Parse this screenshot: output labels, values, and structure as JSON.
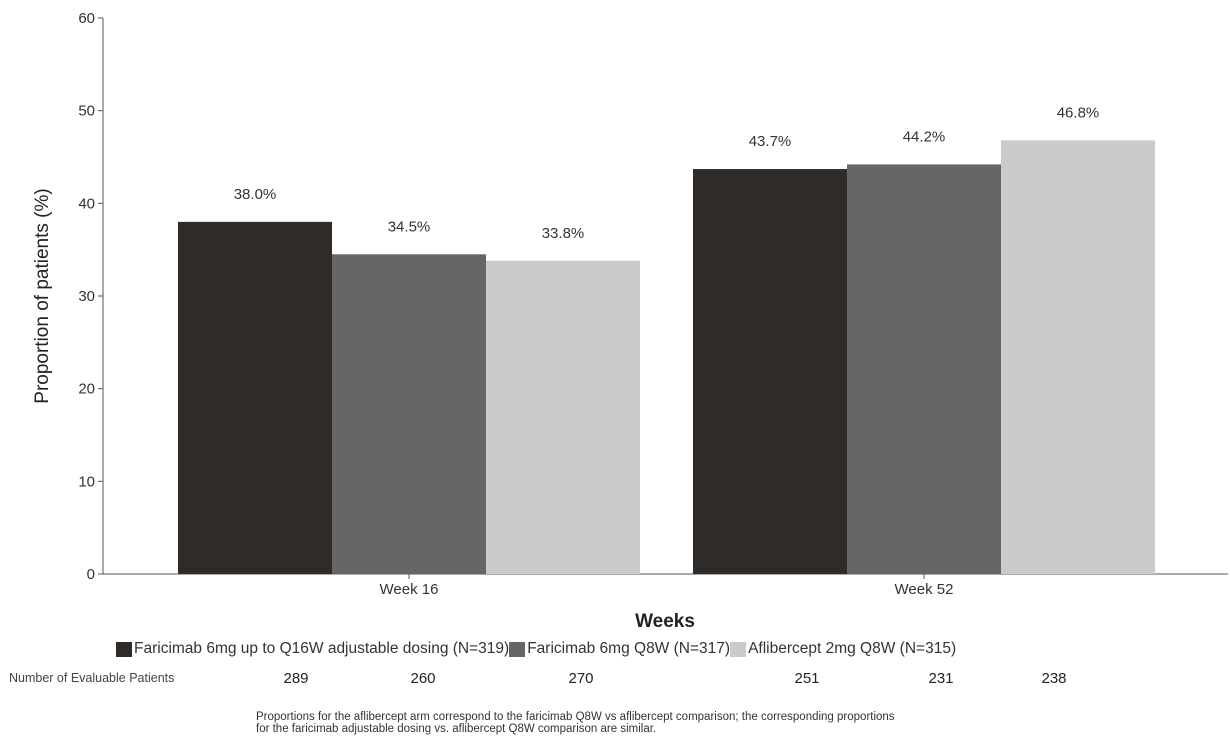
{
  "chart_data": {
    "type": "bar",
    "categories": [
      "Week 16",
      "Week 52"
    ],
    "series": [
      {
        "name": "Faricimab 6mg up to Q16W adjustable dosing (N=319)",
        "values": [
          38.0,
          43.7
        ],
        "labels": [
          "38.0%",
          "43.7%"
        ],
        "color": "#2e2b29"
      },
      {
        "name": "Faricimab 6mg Q8W (N=317)",
        "values": [
          34.5,
          44.2
        ],
        "labels": [
          "34.5%",
          "44.2%"
        ],
        "color": "#666666"
      },
      {
        "name": "Aflibercept 2mg Q8W (N=315)",
        "values": [
          33.8,
          46.8
        ],
        "labels": [
          "33.8%",
          "46.8%"
        ],
        "color": "#cbcbcb"
      }
    ],
    "xlabel": "Weeks",
    "ylabel": "Proportion of patients (%)",
    "ylim": [
      0,
      60
    ],
    "yticks": [
      "0",
      "10",
      "20",
      "30",
      "40",
      "50",
      "60"
    ],
    "grid": false,
    "legend_position": "bottom"
  },
  "evaluable": {
    "label": "Number of Evaluable Patients",
    "week16": [
      "289",
      "260",
      "270"
    ],
    "week52": [
      "251",
      "231",
      "238"
    ]
  },
  "footnote": {
    "line1": "Proportions for the aflibercept arm correspond to the faricimab Q8W vs aflibercept comparison; the corresponding proportions",
    "line2": "for the faricimab adjustable dosing vs. aflibercept Q8W comparison are similar."
  }
}
